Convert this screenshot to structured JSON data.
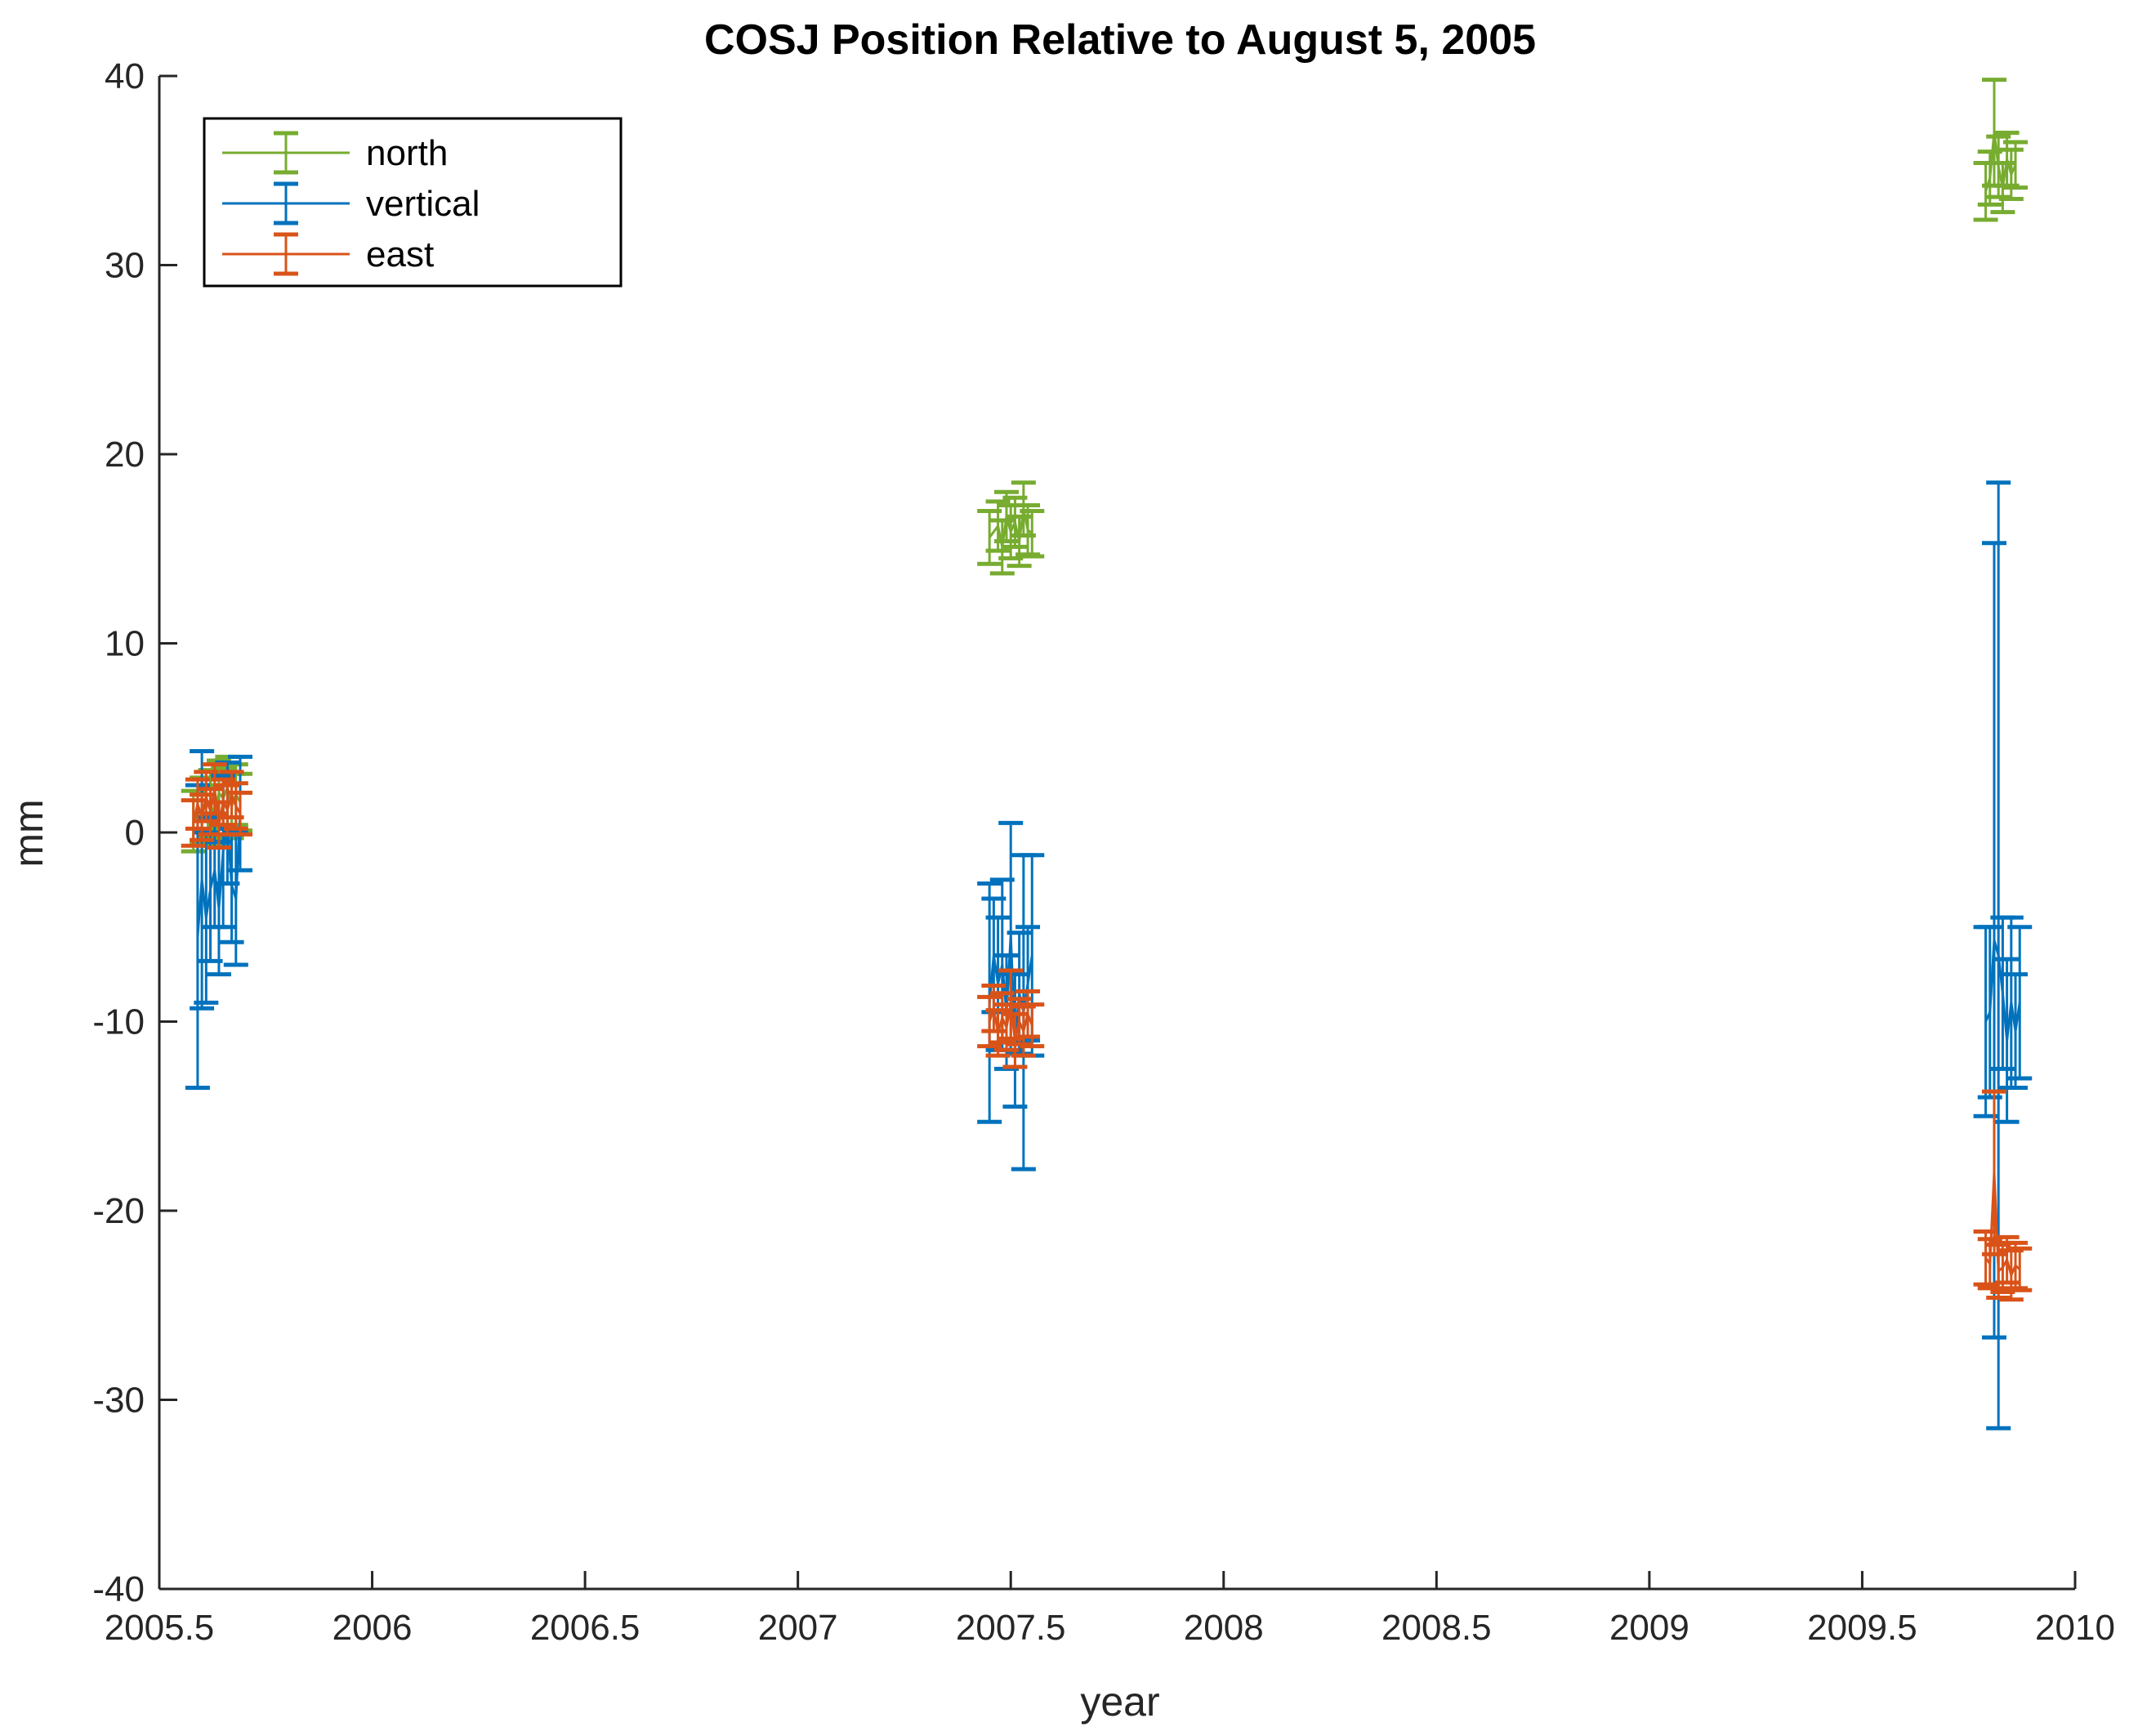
{
  "chart_data": {
    "type": "errorbar",
    "title": "COSJ Position Relative to August 5, 2005",
    "xlabel": "year",
    "ylabel": "mm",
    "xlim": [
      2005.5,
      2010
    ],
    "ylim": [
      -40,
      40
    ],
    "xticks": [
      2005.5,
      2006,
      2006.5,
      2007,
      2007.5,
      2008,
      2008.5,
      2009,
      2009.5,
      2010
    ],
    "xtick_labels": [
      "2005.5",
      "2006",
      "2006.5",
      "2007",
      "2007.5",
      "2008",
      "2008.5",
      "2009",
      "2009.5",
      "2010"
    ],
    "yticks": [
      -40,
      -30,
      -20,
      -10,
      0,
      10,
      20,
      30,
      40
    ],
    "ytick_labels": [
      "-40",
      "-30",
      "-20",
      "-10",
      "0",
      "10",
      "20",
      "30",
      "40"
    ],
    "grid": false,
    "legend_position": "top-left",
    "series": [
      {
        "name": "north",
        "color": "#77AC30",
        "points": [
          {
            "x": 2005.58,
            "y": 0.6,
            "err": 1.6
          },
          {
            "x": 2005.6,
            "y": 1.2,
            "err": 1.7
          },
          {
            "x": 2005.62,
            "y": 1.5,
            "err": 1.8
          },
          {
            "x": 2005.63,
            "y": 0.9,
            "err": 1.6
          },
          {
            "x": 2005.64,
            "y": 2.1,
            "err": 1.7
          },
          {
            "x": 2005.65,
            "y": 1.8,
            "err": 1.6
          },
          {
            "x": 2005.66,
            "y": 2.4,
            "err": 1.6
          },
          {
            "x": 2005.67,
            "y": 1.4,
            "err": 1.7
          },
          {
            "x": 2005.68,
            "y": 2.0,
            "err": 1.6
          },
          {
            "x": 2005.69,
            "y": 1.6,
            "err": 1.5
          },
          {
            "x": 2007.45,
            "y": 15.6,
            "err": 1.4
          },
          {
            "x": 2007.47,
            "y": 16.2,
            "err": 1.3
          },
          {
            "x": 2007.48,
            "y": 15.1,
            "err": 1.4
          },
          {
            "x": 2007.49,
            "y": 16.7,
            "err": 1.3
          },
          {
            "x": 2007.5,
            "y": 15.9,
            "err": 1.4
          },
          {
            "x": 2007.51,
            "y": 16.4,
            "err": 1.3
          },
          {
            "x": 2007.52,
            "y": 15.4,
            "err": 1.3
          },
          {
            "x": 2007.53,
            "y": 17.1,
            "err": 1.4
          },
          {
            "x": 2007.54,
            "y": 16.0,
            "err": 1.3
          },
          {
            "x": 2007.55,
            "y": 15.8,
            "err": 1.2
          },
          {
            "x": 2009.79,
            "y": 33.9,
            "err": 1.5
          },
          {
            "x": 2009.8,
            "y": 34.6,
            "err": 1.4
          },
          {
            "x": 2009.81,
            "y": 37.0,
            "err": 2.8
          },
          {
            "x": 2009.82,
            "y": 35.2,
            "err": 1.6
          },
          {
            "x": 2009.83,
            "y": 34.1,
            "err": 1.3
          },
          {
            "x": 2009.84,
            "y": 35.6,
            "err": 1.4
          },
          {
            "x": 2009.85,
            "y": 34.8,
            "err": 1.3
          },
          {
            "x": 2009.86,
            "y": 35.3,
            "err": 1.2
          }
        ]
      },
      {
        "name": "vertical",
        "color": "#0072BD",
        "points": [
          {
            "x": 2005.59,
            "y": -5.5,
            "err": 8.0
          },
          {
            "x": 2005.6,
            "y": -2.5,
            "err": 6.8
          },
          {
            "x": 2005.61,
            "y": -4.5,
            "err": 4.5
          },
          {
            "x": 2005.62,
            "y": -3.0,
            "err": 3.8
          },
          {
            "x": 2005.63,
            "y": -2.0,
            "err": 3.0
          },
          {
            "x": 2005.64,
            "y": -4.0,
            "err": 3.5
          },
          {
            "x": 2005.65,
            "y": -1.0,
            "err": 4.0
          },
          {
            "x": 2005.66,
            "y": 0.5,
            "err": 3.2
          },
          {
            "x": 2005.67,
            "y": -2.8,
            "err": 3.0
          },
          {
            "x": 2005.68,
            "y": -3.5,
            "err": 3.5
          },
          {
            "x": 2005.69,
            "y": 1.0,
            "err": 3.0
          },
          {
            "x": 2007.45,
            "y": -9.0,
            "err": 6.3
          },
          {
            "x": 2007.46,
            "y": -6.5,
            "err": 3.0
          },
          {
            "x": 2007.47,
            "y": -8.0,
            "err": 3.5
          },
          {
            "x": 2007.48,
            "y": -7.0,
            "err": 4.5
          },
          {
            "x": 2007.49,
            "y": -9.5,
            "err": 3.0
          },
          {
            "x": 2007.5,
            "y": -5.5,
            "err": 6.0
          },
          {
            "x": 2007.51,
            "y": -11.0,
            "err": 3.5
          },
          {
            "x": 2007.52,
            "y": -8.5,
            "err": 3.2
          },
          {
            "x": 2007.53,
            "y": -9.5,
            "err": 8.3
          },
          {
            "x": 2007.54,
            "y": -8.0,
            "err": 3.0
          },
          {
            "x": 2007.55,
            "y": -6.5,
            "err": 5.3
          },
          {
            "x": 2009.79,
            "y": -10.0,
            "err": 5.0
          },
          {
            "x": 2009.8,
            "y": -9.5,
            "err": 4.5
          },
          {
            "x": 2009.81,
            "y": -5.7,
            "err": 21.0
          },
          {
            "x": 2009.82,
            "y": -6.5,
            "err": 25.0
          },
          {
            "x": 2009.83,
            "y": -8.5,
            "err": 4.0
          },
          {
            "x": 2009.84,
            "y": -11.0,
            "err": 4.3
          },
          {
            "x": 2009.85,
            "y": -9.0,
            "err": 4.5
          },
          {
            "x": 2009.86,
            "y": -10.5,
            "err": 3.0
          },
          {
            "x": 2009.87,
            "y": -9.0,
            "err": 4.0
          }
        ]
      },
      {
        "name": "east",
        "color": "#D95319",
        "points": [
          {
            "x": 2005.58,
            "y": 0.5,
            "err": 1.2
          },
          {
            "x": 2005.59,
            "y": 1.5,
            "err": 1.3
          },
          {
            "x": 2005.6,
            "y": 0.8,
            "err": 1.2
          },
          {
            "x": 2005.61,
            "y": 1.9,
            "err": 1.3
          },
          {
            "x": 2005.62,
            "y": 1.1,
            "err": 1.2
          },
          {
            "x": 2005.63,
            "y": 2.3,
            "err": 1.3
          },
          {
            "x": 2005.64,
            "y": 0.4,
            "err": 1.2
          },
          {
            "x": 2005.65,
            "y": 1.6,
            "err": 1.2
          },
          {
            "x": 2005.66,
            "y": 1.2,
            "err": 1.3
          },
          {
            "x": 2005.67,
            "y": 2.0,
            "err": 1.2
          },
          {
            "x": 2005.68,
            "y": 1.4,
            "err": 1.2
          },
          {
            "x": 2005.69,
            "y": 1.0,
            "err": 1.1
          },
          {
            "x": 2007.45,
            "y": -10.0,
            "err": 1.3
          },
          {
            "x": 2007.46,
            "y": -9.3,
            "err": 1.2
          },
          {
            "x": 2007.47,
            "y": -10.6,
            "err": 1.2
          },
          {
            "x": 2007.48,
            "y": -9.8,
            "err": 1.3
          },
          {
            "x": 2007.49,
            "y": -10.3,
            "err": 1.2
          },
          {
            "x": 2007.5,
            "y": -9.1,
            "err": 1.8
          },
          {
            "x": 2007.51,
            "y": -11.0,
            "err": 1.4
          },
          {
            "x": 2007.52,
            "y": -10.0,
            "err": 1.2
          },
          {
            "x": 2007.53,
            "y": -10.5,
            "err": 1.3
          },
          {
            "x": 2007.54,
            "y": -9.6,
            "err": 1.2
          },
          {
            "x": 2007.55,
            "y": -10.2,
            "err": 1.1
          },
          {
            "x": 2009.79,
            "y": -22.5,
            "err": 1.4
          },
          {
            "x": 2009.8,
            "y": -22.8,
            "err": 1.3
          },
          {
            "x": 2009.81,
            "y": -18.0,
            "err": 4.3
          },
          {
            "x": 2009.82,
            "y": -23.2,
            "err": 1.4
          },
          {
            "x": 2009.83,
            "y": -23.0,
            "err": 1.3
          },
          {
            "x": 2009.84,
            "y": -22.6,
            "err": 1.2
          },
          {
            "x": 2009.85,
            "y": -23.4,
            "err": 1.3
          },
          {
            "x": 2009.86,
            "y": -22.9,
            "err": 1.2
          },
          {
            "x": 2009.87,
            "y": -23.1,
            "err": 1.1
          }
        ]
      }
    ],
    "legend_order": [
      "north",
      "vertical",
      "east"
    ]
  }
}
